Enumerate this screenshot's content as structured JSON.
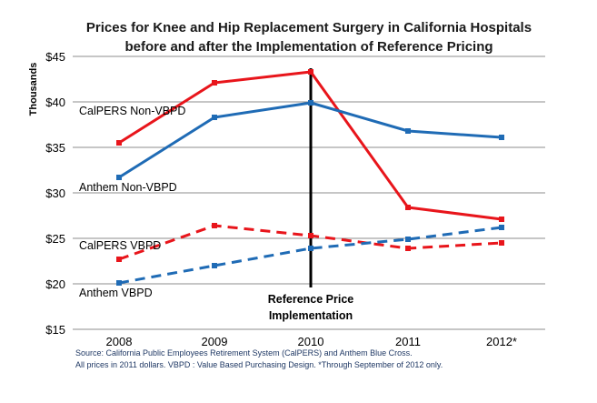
{
  "chart_data": {
    "type": "line",
    "title": "Prices for Knee and Hip Replacement Surgery in California Hospitals",
    "subtitle": "before and after the Implementation of Reference Pricing",
    "ylabel": "Thousands",
    "xlabel": "",
    "categories": [
      "2008",
      "2009",
      "2010",
      "2011",
      "2012*"
    ],
    "ylim": [
      15,
      45
    ],
    "y_ticks": [
      15,
      20,
      25,
      30,
      35,
      40,
      45
    ],
    "y_tick_labels": [
      "$15",
      "$20",
      "$25",
      "$30",
      "$35",
      "$40",
      "$45"
    ],
    "grid": "horizontal",
    "legend": "inline labels beside each series",
    "series": [
      {
        "name": "CalPERS Non-VBPD",
        "color": "#e8151b",
        "dashed": false,
        "values": [
          35.5,
          42.1,
          43.3,
          28.4,
          27.1
        ]
      },
      {
        "name": "Anthem Non-VBPD",
        "color": "#1f6bb5",
        "dashed": false,
        "values": [
          31.7,
          38.3,
          39.9,
          36.8,
          36.1
        ]
      },
      {
        "name": "CalPERS VBPD",
        "color": "#e8151b",
        "dashed": true,
        "values": [
          22.7,
          26.4,
          25.3,
          23.9,
          24.5
        ]
      },
      {
        "name": "Anthem VBPD",
        "color": "#1f6bb5",
        "dashed": true,
        "values": [
          20.1,
          22.0,
          23.9,
          24.9,
          26.2
        ]
      }
    ],
    "annotation": {
      "x": "2010",
      "line1": "Reference Price",
      "line2": "Implementation",
      "line_color": "#000000"
    },
    "source": {
      "line1": "Source: California Public Employees Retirement System (CalPERS) and Anthem Blue Cross.",
      "line2": "All prices  in 2011 dollars.  VBPD :  Value Based Purchasing Design. *Through  September of 2012 only."
    }
  }
}
